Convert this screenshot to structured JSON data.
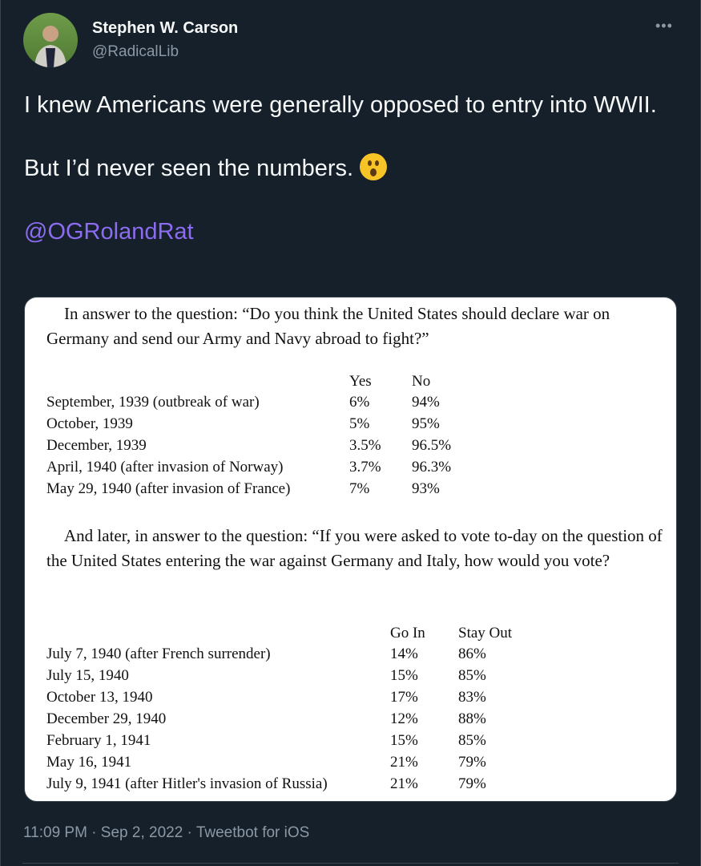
{
  "author": {
    "name": "Stephen W. Carson",
    "handle": "@RadicalLib"
  },
  "tweet": {
    "line1": "I knew Americans were generally opposed to entry into WWII.",
    "line2": "But I’d never seen the numbers.",
    "emoji": "hushed-face",
    "mention": "@OGRolandRat"
  },
  "image": {
    "q1": "In answer to the question: “Do you think the United States should declare war on Germany and send our Army and Navy abroad to fight?”",
    "t1": {
      "headers": [
        "Yes",
        "No"
      ],
      "rows": [
        [
          "September, 1939 (outbreak of war)",
          "6%",
          "94%"
        ],
        [
          "October, 1939",
          "5%",
          "95%"
        ],
        [
          "December, 1939",
          "3.5%",
          "96.5%"
        ],
        [
          "April, 1940 (after invasion of Norway)",
          "3.7%",
          "96.3%"
        ],
        [
          "May 29, 1940 (after invasion of France)",
          "7%",
          "93%"
        ]
      ]
    },
    "q2": "And later, in answer to the question: “If you were asked to vote to-day on the question of the United States entering the war against Germany and Italy, how would you vote?",
    "t2": {
      "headers": [
        "Go In",
        "Stay Out"
      ],
      "rows": [
        [
          "July 7, 1940 (after French surrender)",
          "14%",
          "86%"
        ],
        [
          "July 15, 1940",
          "15%",
          "85%"
        ],
        [
          "October 13, 1940",
          "17%",
          "83%"
        ],
        [
          "December 29, 1940",
          "12%",
          "88%"
        ],
        [
          "February 1, 1941",
          "15%",
          "85%"
        ],
        [
          "May 16, 1941",
          "21%",
          "79%"
        ],
        [
          "July 9, 1941 (after Hitler's invasion of Russia)",
          "21%",
          "79%"
        ]
      ]
    }
  },
  "meta": "11:09 PM · Sep 2, 2022 · Tweetbot for iOS"
}
